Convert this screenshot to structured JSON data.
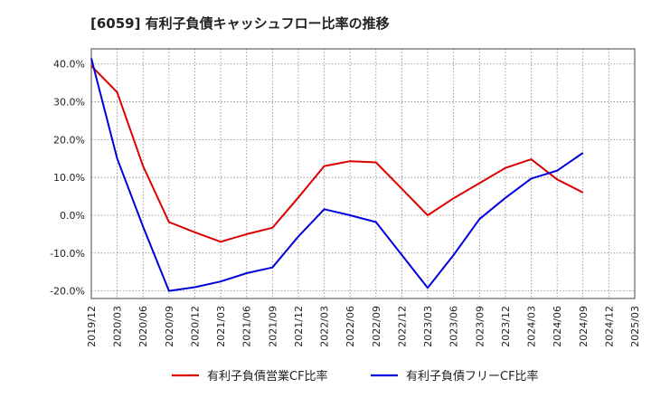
{
  "chart_data": {
    "type": "line",
    "title": "[6059]  有利子負債キャッシュフロー比率の推移",
    "xlabel": "",
    "ylabel": "",
    "ylim": [
      -22,
      44
    ],
    "yticks": [
      40,
      30,
      20,
      10,
      0,
      -10,
      -20
    ],
    "ytick_labels": [
      "40.0%",
      "30.0%",
      "20.0%",
      "10.0%",
      "0.0%",
      "-10.0%",
      "-20.0%"
    ],
    "x_tick_labels": [
      "2019/12",
      "2020/03",
      "2020/06",
      "2020/09",
      "2020/12",
      "2021/03",
      "2021/06",
      "2021/09",
      "2021/12",
      "2022/03",
      "2022/06",
      "2022/09",
      "2022/12",
      "2023/03",
      "2023/06",
      "2023/09",
      "2023/12",
      "2024/03",
      "2024/06",
      "2024/09",
      "2024/12",
      "2025/03"
    ],
    "grid": true,
    "legend_position": "bottom",
    "series": [
      {
        "name": "有利子負債営業CF比率",
        "color": "#dd0000",
        "x": [
          "2019/12",
          "2020/03",
          "2020/06",
          "2020/09",
          "2020/12",
          "2021/03",
          "2021/06",
          "2021/09",
          "2021/12",
          "2022/03",
          "2022/06",
          "2022/09",
          "2022/12",
          "2023/03",
          "2023/06",
          "2023/09",
          "2023/12",
          "2024/03",
          "2024/06",
          "2024/09"
        ],
        "values": [
          39.5,
          32.5,
          13.0,
          -1.8,
          -4.5,
          -7.0,
          -5.0,
          -3.3,
          4.7,
          13.0,
          14.3,
          14.0,
          7.0,
          0.0,
          4.5,
          8.5,
          12.5,
          14.8,
          9.5,
          6.0
        ]
      },
      {
        "name": "有利子負債フリーCF比率",
        "color": "#0000dd",
        "x": [
          "2019/12",
          "2020/03",
          "2020/06",
          "2020/09",
          "2020/12",
          "2021/03",
          "2021/06",
          "2021/09",
          "2021/12",
          "2022/03",
          "2022/06",
          "2022/09",
          "2022/12",
          "2023/03",
          "2023/06",
          "2023/09",
          "2023/12",
          "2024/03",
          "2024/06",
          "2024/09"
        ],
        "values": [
          41.5,
          15.0,
          -3.0,
          -20.0,
          -19.0,
          -17.5,
          -15.3,
          -13.8,
          -5.6,
          1.6,
          0.0,
          -1.8,
          -10.5,
          -19.2,
          -10.5,
          -1.0,
          4.6,
          9.7,
          11.8,
          16.5
        ]
      }
    ]
  }
}
